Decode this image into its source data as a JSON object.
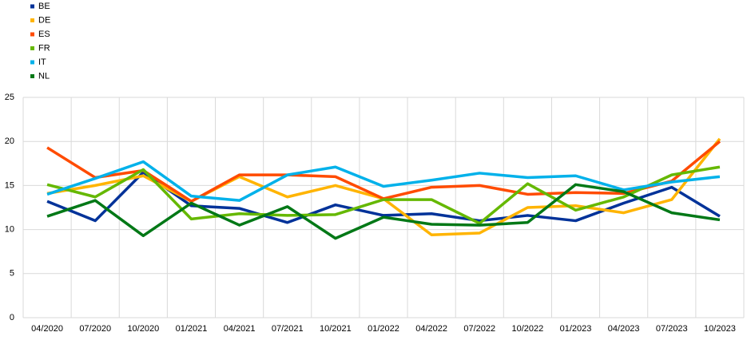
{
  "chart_data": {
    "type": "line",
    "categories": [
      "04/2020",
      "07/2020",
      "10/2020",
      "01/2021",
      "04/2021",
      "07/2021",
      "10/2021",
      "01/2022",
      "04/2022",
      "07/2022",
      "10/2022",
      "01/2023",
      "04/2023",
      "07/2023",
      "10/2023"
    ],
    "series": [
      {
        "name": "BE",
        "color": "#003299",
        "values": [
          13.2,
          11.0,
          16.5,
          12.7,
          12.4,
          10.8,
          12.8,
          11.6,
          11.8,
          11.0,
          11.6,
          11.0,
          13.0,
          14.8,
          11.5
        ]
      },
      {
        "name": "DE",
        "color": "#ffb400",
        "values": [
          14.1,
          15.0,
          16.1,
          13.2,
          16.0,
          13.7,
          15.0,
          13.5,
          9.4,
          9.6,
          12.5,
          12.7,
          11.9,
          13.4,
          20.3
        ]
      },
      {
        "name": "ES",
        "color": "#ff4b00",
        "values": [
          19.3,
          15.9,
          16.7,
          13.2,
          16.2,
          16.2,
          16.0,
          13.5,
          14.8,
          15.0,
          14.0,
          14.2,
          14.1,
          15.5,
          20.0
        ]
      },
      {
        "name": "FR",
        "color": "#65b800",
        "values": [
          15.1,
          13.7,
          16.8,
          11.2,
          11.8,
          11.6,
          11.7,
          13.4,
          13.4,
          10.7,
          15.2,
          12.2,
          13.7,
          16.2,
          17.1
        ]
      },
      {
        "name": "IT",
        "color": "#00b1ea",
        "values": [
          14.0,
          15.8,
          17.7,
          13.8,
          13.3,
          16.2,
          17.1,
          14.9,
          15.6,
          16.4,
          15.9,
          16.1,
          14.5,
          15.4,
          16.0
        ]
      },
      {
        "name": "NL",
        "color": "#007816",
        "values": [
          11.5,
          13.3,
          9.3,
          13.0,
          10.5,
          12.6,
          9.0,
          11.4,
          10.6,
          10.5,
          10.8,
          15.1,
          14.3,
          11.9,
          11.1
        ]
      }
    ],
    "ylim": [
      0,
      25
    ],
    "yticks": [
      0,
      5,
      10,
      15,
      20,
      25
    ],
    "grid": true,
    "legend": "top-left"
  }
}
